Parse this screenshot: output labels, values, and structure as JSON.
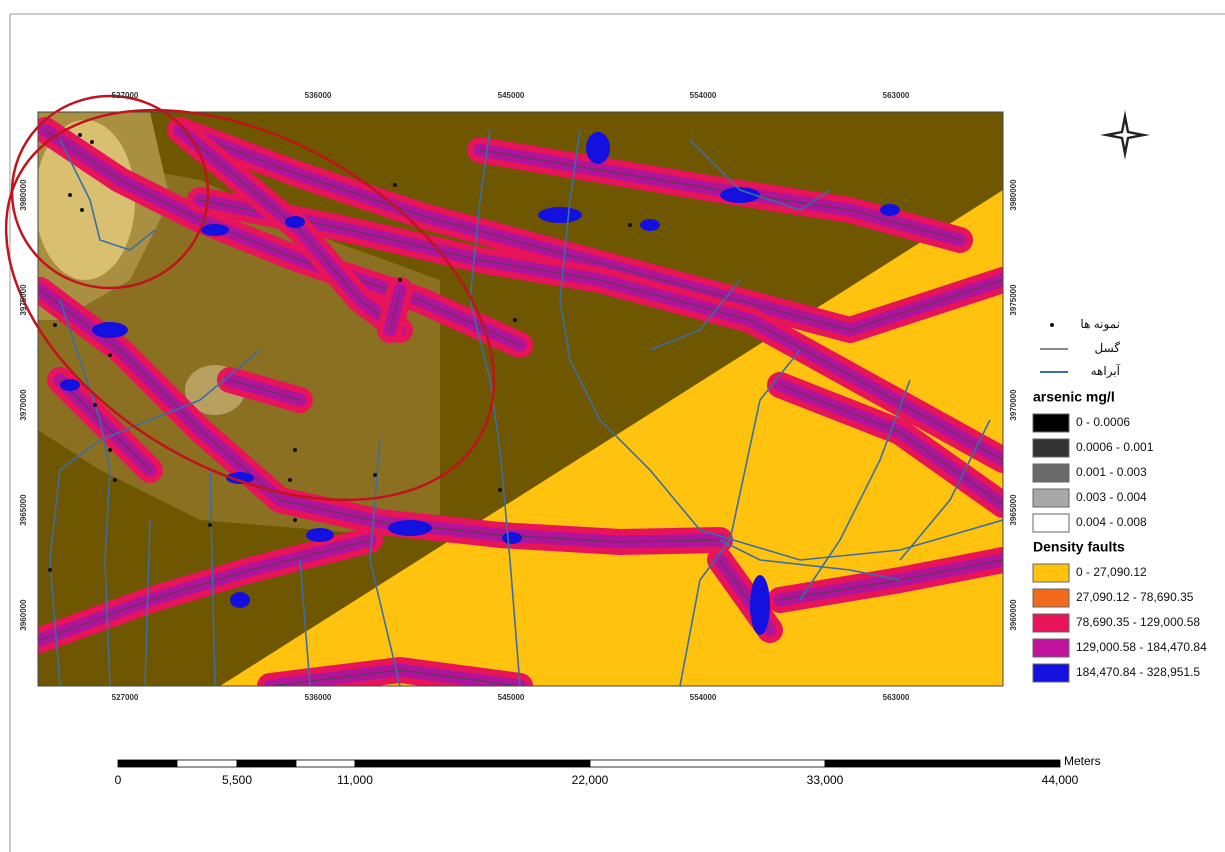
{
  "map": {
    "top_ticks": [
      "527000",
      "536000",
      "545000",
      "554000",
      "563000"
    ],
    "bottom_ticks": [
      "527000",
      "536000",
      "545000",
      "554000",
      "563000"
    ],
    "left_ticks": [
      "3980000",
      "3975000",
      "3970000",
      "3965000",
      "3960000"
    ],
    "right_ticks": [
      "3980000",
      "3975000",
      "3970000",
      "3965000",
      "3960000"
    ]
  },
  "legend": {
    "symbols": [
      "نمونه ها",
      "گسل",
      "آبراهه"
    ],
    "arsenic": {
      "title": "arsenic mg/l",
      "classes": [
        {
          "label": "0 - 0.0006",
          "color": "#000000"
        },
        {
          "label": "0.0006 - 0.001",
          "color": "#333333"
        },
        {
          "label": "0.001 - 0.003",
          "color": "#6a6a6a"
        },
        {
          "label": "0.003 - 0.004",
          "color": "#a8a8a8"
        },
        {
          "label": "0.004 - 0.008",
          "color": "#ffffff"
        }
      ]
    },
    "faults": {
      "title": "Density faults",
      "classes": [
        {
          "label": "0 - 27,090.12",
          "color": "#ffc20e"
        },
        {
          "label": "27,090.12 - 78,690.35",
          "color": "#f26a1b"
        },
        {
          "label": "78,690.35 - 129,000.58",
          "color": "#e8145a"
        },
        {
          "label": "129,000.58 - 184,470.84",
          "color": "#c0129e"
        },
        {
          "label": "184,470.84 - 328,951.5",
          "color": "#1410e0"
        }
      ]
    }
  },
  "scale_bar": {
    "labels": [
      "0",
      "5,500",
      "11,000",
      "22,000",
      "33,000",
      "44,000"
    ],
    "unit": "Meters"
  }
}
